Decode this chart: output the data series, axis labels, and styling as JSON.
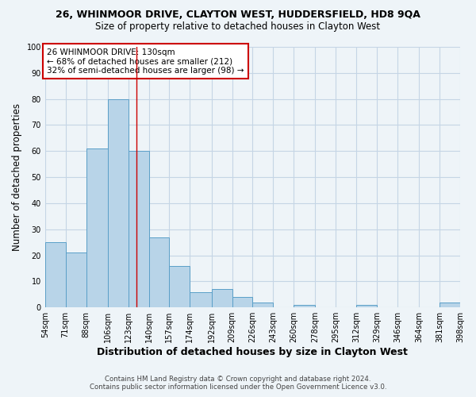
{
  "title1": "26, WHINMOOR DRIVE, CLAYTON WEST, HUDDERSFIELD, HD8 9QA",
  "title2": "Size of property relative to detached houses in Clayton West",
  "xlabel": "Distribution of detached houses by size in Clayton West",
  "ylabel": "Number of detached properties",
  "footnote1": "Contains HM Land Registry data © Crown copyright and database right 2024.",
  "footnote2": "Contains public sector information licensed under the Open Government Licence v3.0.",
  "annotation_line1": "26 WHINMOOR DRIVE: 130sqm",
  "annotation_line2": "← 68% of detached houses are smaller (212)",
  "annotation_line3": "32% of semi-detached houses are larger (98) →",
  "bar_left_edges": [
    54,
    71,
    88,
    106,
    123,
    140,
    157,
    174,
    192,
    209,
    226,
    243,
    260,
    278,
    295,
    312,
    329,
    346,
    364,
    381
  ],
  "bar_widths": [
    17,
    17,
    18,
    17,
    17,
    17,
    17,
    18,
    17,
    17,
    17,
    17,
    18,
    17,
    17,
    17,
    17,
    18,
    17,
    17
  ],
  "bar_heights": [
    25,
    21,
    61,
    80,
    60,
    27,
    16,
    6,
    7,
    4,
    2,
    0,
    1,
    0,
    0,
    1,
    0,
    0,
    0,
    2
  ],
  "tick_labels": [
    "54sqm",
    "71sqm",
    "88sqm",
    "106sqm",
    "123sqm",
    "140sqm",
    "157sqm",
    "174sqm",
    "192sqm",
    "209sqm",
    "226sqm",
    "243sqm",
    "260sqm",
    "278sqm",
    "295sqm",
    "312sqm",
    "329sqm",
    "346sqm",
    "364sqm",
    "381sqm",
    "398sqm"
  ],
  "bar_color": "#b8d4e8",
  "bar_edge_color": "#5a9fc8",
  "red_line_x": 130,
  "ylim": [
    0,
    100
  ],
  "yticks": [
    0,
    10,
    20,
    30,
    40,
    50,
    60,
    70,
    80,
    90,
    100
  ],
  "annotation_box_color": "white",
  "annotation_box_edge": "#cc0000",
  "grid_color": "#c5d5e5",
  "background_color": "#eef4f8",
  "plot_bg_color": "#eef4f8"
}
